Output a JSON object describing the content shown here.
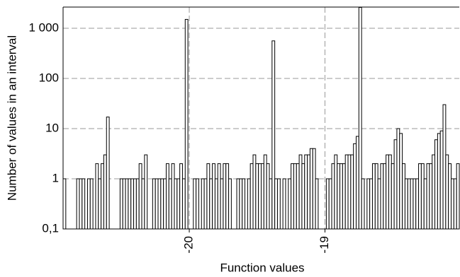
{
  "chart_data": {
    "type": "histogram",
    "xlabel": "Function values",
    "ylabel": "Number of values in an interval",
    "xlim": [
      -20.93,
      -18.01
    ],
    "ylim": [
      0.1,
      2640
    ],
    "yscale": "log",
    "grid": true,
    "color": "#000000",
    "xticks": [
      -20,
      -19
    ],
    "yticks": [
      {
        "value": 0.1,
        "label": "0,1"
      },
      1,
      10,
      100,
      {
        "value": 1000,
        "label": "1 000"
      }
    ],
    "bins": [
      -20.93,
      -20.91,
      -20.89,
      -20.87,
      -20.85,
      -20.83,
      -20.81,
      -20.79,
      -20.77,
      -20.75,
      -20.73,
      -20.71,
      -20.69,
      -20.67,
      -20.65,
      -20.63,
      -20.61,
      -20.59,
      -20.57,
      -20.55,
      -20.53,
      -20.51,
      -20.49,
      -20.47,
      -20.45,
      -20.43,
      -20.41,
      -20.39,
      -20.37,
      -20.35,
      -20.33,
      -20.31,
      -20.29,
      -20.27,
      -20.25,
      -20.23,
      -20.21,
      -20.19,
      -20.17,
      -20.15,
      -20.13,
      -20.11,
      -20.09,
      -20.07,
      -20.05,
      -20.03,
      -20.01,
      -19.99,
      -19.97,
      -19.95,
      -19.93,
      -19.91,
      -19.89,
      -19.87,
      -19.85,
      -19.83,
      -19.81,
      -19.79,
      -19.77,
      -19.75,
      -19.73,
      -19.71,
      -19.69,
      -19.67,
      -19.65,
      -19.63,
      -19.61,
      -19.59,
      -19.57,
      -19.55,
      -19.53,
      -19.51,
      -19.49,
      -19.47,
      -19.45,
      -19.43,
      -19.41,
      -19.39,
      -19.37,
      -19.35,
      -19.33,
      -19.31,
      -19.29,
      -19.27,
      -19.25,
      -19.23,
      -19.21,
      -19.19,
      -19.17,
      -19.15,
      -19.13,
      -19.11,
      -19.09,
      -19.07,
      -19.05,
      -19.03,
      -19.01,
      -18.99,
      -18.97,
      -18.95,
      -18.93,
      -18.91,
      -18.89,
      -18.87,
      -18.85,
      -18.83,
      -18.81,
      -18.79,
      -18.77,
      -18.75,
      -18.73,
      -18.71,
      -18.69,
      -18.67,
      -18.65,
      -18.63,
      -18.61,
      -18.59,
      -18.57,
      -18.55,
      -18.53,
      -18.51,
      -18.49,
      -18.47,
      -18.45,
      -18.43,
      -18.41,
      -18.39,
      -18.37,
      -18.35,
      -18.33,
      -18.31,
      -18.29,
      -18.27,
      -18.25,
      -18.23,
      -18.21,
      -18.19,
      -18.17,
      -18.15,
      -18.13,
      -18.11,
      -18.09,
      -18.07,
      -18.05,
      -18.03,
      -18.01
    ],
    "values": [
      1,
      0,
      0,
      0,
      0,
      1,
      1,
      1,
      0,
      1,
      1,
      0,
      2,
      1,
      2,
      3,
      17,
      0,
      0,
      0,
      0,
      1,
      1,
      1,
      1,
      1,
      1,
      1,
      2,
      1,
      3,
      0,
      0,
      1,
      1,
      1,
      1,
      1,
      2,
      1,
      2,
      1,
      1,
      2,
      1,
      1500,
      0,
      0,
      1,
      1,
      0,
      1,
      1,
      2,
      1,
      2,
      1,
      2,
      1,
      2,
      2,
      1,
      0,
      0,
      1,
      1,
      1,
      0,
      1,
      2,
      3,
      2,
      2,
      2,
      3,
      2,
      1,
      560,
      1,
      1,
      0,
      1,
      0,
      1,
      2,
      2,
      2,
      3,
      2,
      3,
      3,
      4,
      4,
      1,
      0,
      0,
      0,
      1,
      1,
      2,
      3,
      2,
      2,
      2,
      3,
      3,
      3,
      5,
      7,
      2600,
      1,
      0,
      1,
      1,
      2,
      2,
      1,
      2,
      2,
      3,
      3,
      2,
      6,
      10,
      8,
      2,
      1,
      1,
      1,
      1,
      1,
      2,
      2,
      1,
      2,
      2,
      3,
      6,
      8,
      9,
      30,
      3,
      2,
      1,
      1,
      2
    ]
  }
}
